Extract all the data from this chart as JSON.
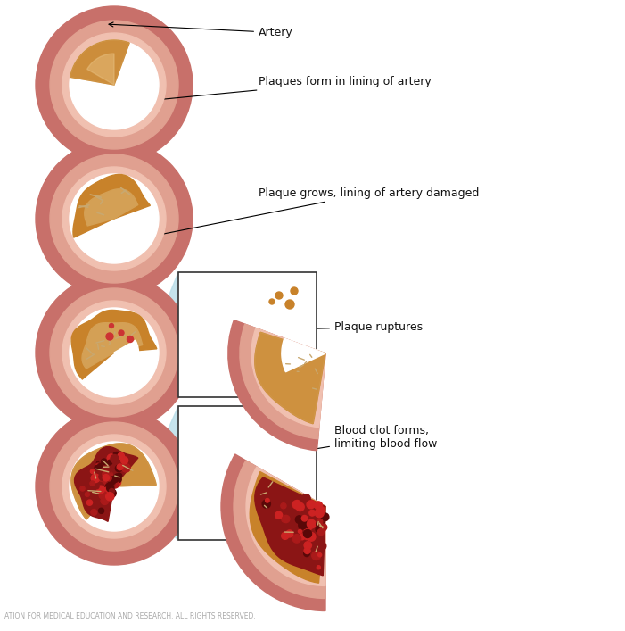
{
  "bg_color": "#ffffff",
  "artery_outer_color": "#c8706a",
  "artery_mid_color": "#e0a090",
  "artery_inner_color": "#f0c0b0",
  "artery_lumen_color": "#ffffff",
  "plaque_base": "#c8822a",
  "plaque_mid": "#b06820",
  "plaque_light": "#d4a055",
  "plaque_highlight": "#e8c080",
  "blood_color": "#8b1515",
  "blood_dark": "#5a0808",
  "blood_bright": "#cc2222",
  "vein_color": "#e8d0a0",
  "vein_dark": "#c8a870",
  "annotation_color": "#111111",
  "footer_text": "ATION FOR MEDICAL EDUCATION AND RESEARCH. ALL RIGHTS RESERVED.",
  "footer_color": "#aaaaaa",
  "labels": {
    "artery": "Artery",
    "plaque_form": "Plaques form in lining of artery",
    "plaque_grows": "Plaque grows, lining of artery damaged",
    "plaque_ruptures": "Plaque ruptures",
    "blood_clot": "Blood clot forms,\nlimiting blood flow"
  },
  "figsize": [
    7.01,
    7.07
  ],
  "dpi": 100
}
